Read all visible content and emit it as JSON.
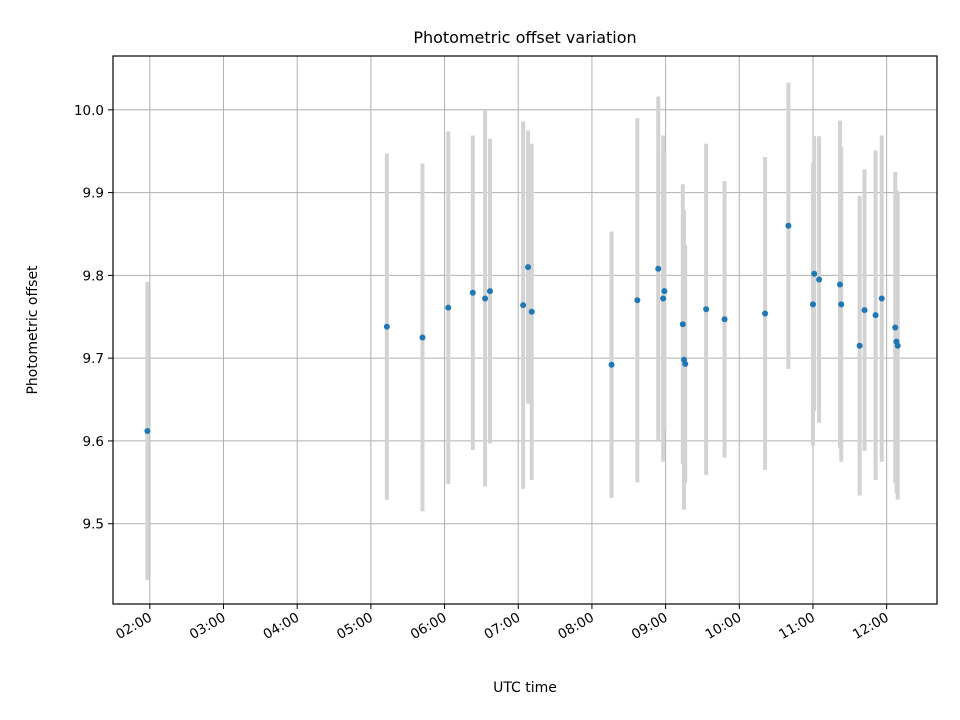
{
  "chart_data": {
    "type": "scatter",
    "title": "Photometric offset variation",
    "xlabel": "UTC time",
    "ylabel": "Photometric offset",
    "x_unit": "hours UTC",
    "xlim": [
      "01:30",
      "12:41"
    ],
    "ylim": [
      9.403,
      10.065
    ],
    "grid": true,
    "colors": {
      "points": "#1f77b4",
      "errorbars": "#d3d3d3",
      "grid": "#b0b0b0"
    },
    "x_ticks": [
      "02:00",
      "03:00",
      "04:00",
      "05:00",
      "06:00",
      "07:00",
      "08:00",
      "09:00",
      "10:00",
      "11:00",
      "12:00"
    ],
    "y_ticks": [
      "9.5",
      "9.6",
      "9.7",
      "9.8",
      "9.9",
      "10.0"
    ],
    "series": [
      {
        "x": [
          "01:58",
          "05:13",
          "05:42",
          "06:03",
          "06:23",
          "06:33",
          "06:37",
          "07:04",
          "07:08",
          "07:11",
          "08:16",
          "08:37",
          "08:54",
          "08:58",
          "08:59",
          "09:14",
          "09:15",
          "09:16",
          "09:33",
          "09:48",
          "10:21",
          "10:40",
          "11:00",
          "11:01",
          "11:05",
          "11:22",
          "11:23",
          "11:38",
          "11:42",
          "11:51",
          "11:56",
          "12:07",
          "12:08",
          "12:09"
        ],
        "y": [
          9.612,
          9.738,
          9.725,
          9.761,
          9.779,
          9.772,
          9.781,
          9.764,
          9.81,
          9.756,
          9.692,
          9.77,
          9.808,
          9.772,
          9.781,
          9.741,
          9.698,
          9.693,
          9.759,
          9.747,
          9.754,
          9.86,
          9.765,
          9.802,
          9.795,
          9.789,
          9.765,
          9.715,
          9.758,
          9.752,
          9.772,
          9.737,
          9.72,
          9.715
        ],
        "yerr": [
          0.18,
          0.209,
          0.21,
          0.213,
          0.19,
          0.227,
          0.184,
          0.222,
          0.165,
          0.203,
          0.161,
          0.22,
          0.208,
          0.197,
          0.168,
          0.169,
          0.181,
          0.144,
          0.2,
          0.167,
          0.189,
          0.173,
          0.171,
          0.166,
          0.173,
          0.198,
          0.19,
          0.181,
          0.17,
          0.199,
          0.197,
          0.188,
          0.183,
          0.186
        ]
      }
    ]
  }
}
